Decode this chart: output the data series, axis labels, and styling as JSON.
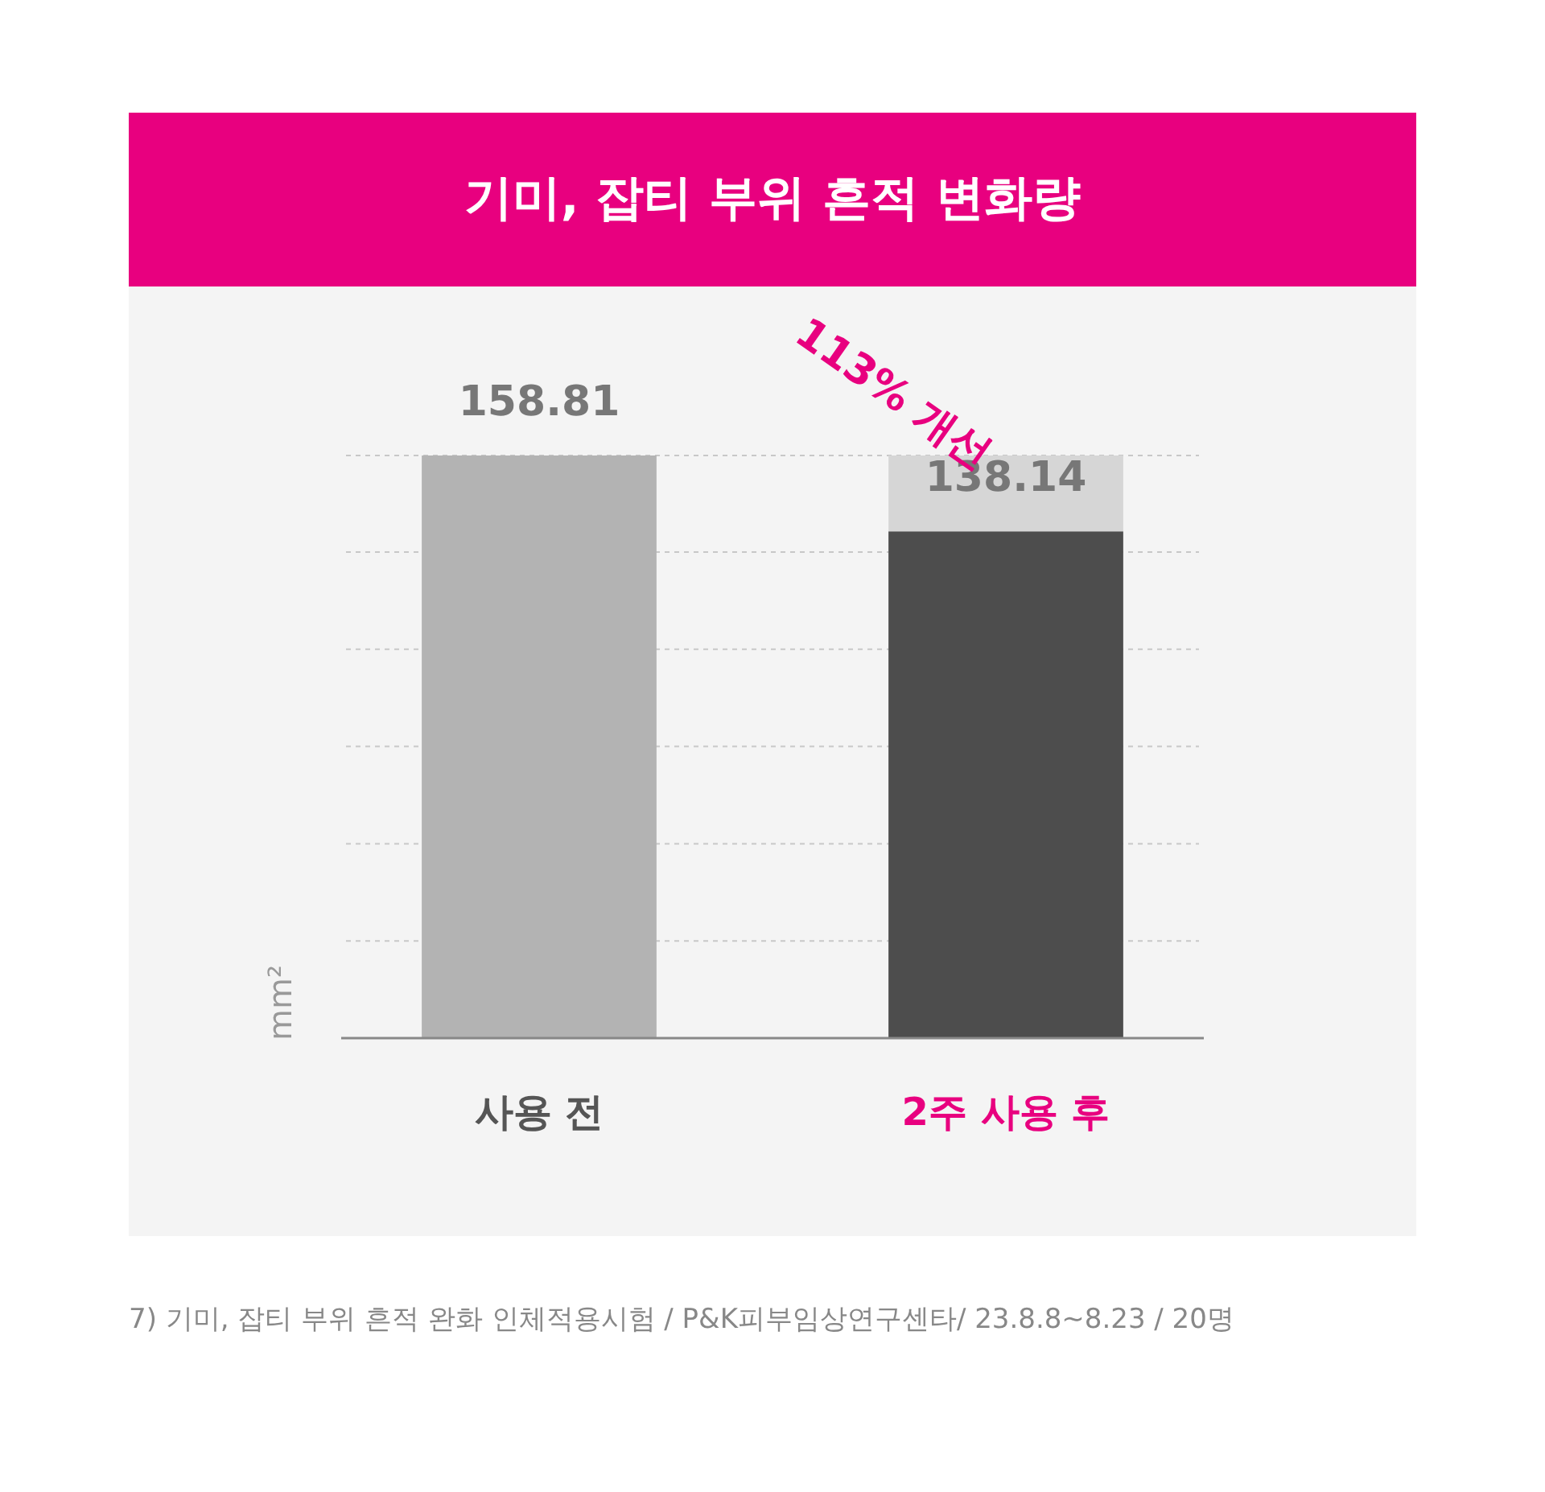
{
  "chart_data": {
    "type": "bar",
    "title": "기미, 잡티 부위 흔적 변화량",
    "ylabel": "mm²",
    "categories": [
      "사용 전",
      "2주 사용 후"
    ],
    "stacked": true,
    "series": [
      {
        "colors": [
          "#b3b3b3",
          "#4d4d4d"
        ],
        "values": [
          158.81,
          138.14
        ],
        "value_labels": [
          "158.81",
          "138.14"
        ]
      },
      {
        "color": "#d6d6d6",
        "values": [
          null,
          20.67
        ]
      }
    ],
    "yticks": [
      {
        "value": 26.5,
        "label": null
      },
      {
        "value": 53,
        "label": null
      },
      {
        "value": 79.5,
        "label": null
      },
      {
        "value": 106,
        "label": null
      },
      {
        "value": 132.5,
        "label": null
      },
      {
        "value": 158.81,
        "label": null
      }
    ],
    "grid": "y",
    "annotations": [
      "113% 개선",
      "7) 기미, 잡티 부위 흔적 완화 인체적용시험 / P&K피부임상연구센타/ 23.8.8~8.23 / 20명"
    ]
  }
}
